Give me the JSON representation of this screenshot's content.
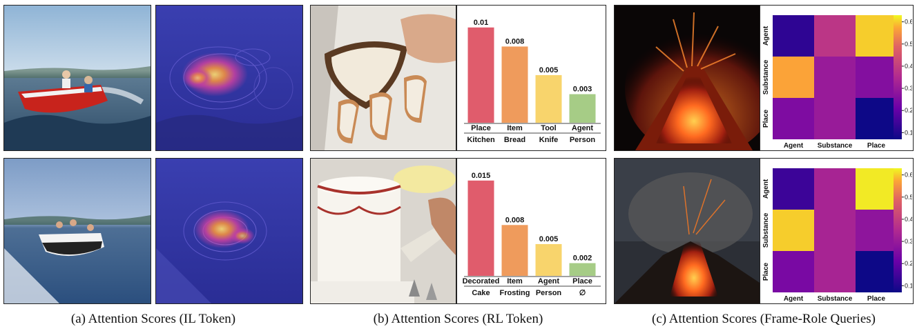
{
  "captions": {
    "a": "(a) Attention Scores (IL Token)",
    "b": "(b) Attention Scores (RL Token)",
    "c": "(c) Attention Scores (Frame-Role Queries)"
  },
  "icons": {
    "boat_photo": "speedboat-photo-icon",
    "heatmap_overlay": "attention-overlay-icon",
    "bread_photo": "bread-spreading-photo-icon",
    "cake_photo": "cake-decorating-photo-icon",
    "volcano_photo": "volcano-photo-icon"
  },
  "colors": {
    "bar_colors": [
      "#e05c6c",
      "#ef9b5c",
      "#f8d46c",
      "#a6cc86"
    ],
    "heatmap_colormap": "plasma"
  },
  "chart_data": [
    {
      "type": "bar",
      "id": "b-top",
      "roles": [
        "Place",
        "Item",
        "Tool",
        "Agent"
      ],
      "nouns": [
        "Kitchen",
        "Bread",
        "Knife",
        "Person"
      ],
      "values": [
        0.01,
        0.008,
        0.005,
        0.003
      ],
      "value_labels": [
        "0.01",
        "0.008",
        "0.005",
        "0.003"
      ],
      "ylim": [
        0,
        0.011
      ]
    },
    {
      "type": "bar",
      "id": "b-bottom",
      "roles": [
        "Decorated",
        "Item",
        "Agent",
        "Place"
      ],
      "nouns": [
        "Cake",
        "Frosting",
        "Person",
        "∅"
      ],
      "values": [
        0.015,
        0.008,
        0.005,
        0.002
      ],
      "value_labels": [
        "0.015",
        "0.008",
        "0.005",
        "0.002"
      ],
      "ylim": [
        0,
        0.0165
      ]
    },
    {
      "type": "heatmap",
      "id": "c-top",
      "rows": [
        "Agent",
        "Substance",
        "Place"
      ],
      "cols": [
        "Agent",
        "Substance",
        "Place"
      ],
      "values": [
        [
          0.12,
          0.38,
          0.6
        ],
        [
          0.57,
          0.3,
          0.26
        ],
        [
          0.25,
          0.3,
          0.07
        ]
      ],
      "colorbar_ticks": [
        "0.1",
        "0.2",
        "0.3",
        "0.4",
        "0.5",
        "0.6"
      ],
      "vlim": [
        0.07,
        0.63
      ]
    },
    {
      "type": "heatmap",
      "id": "c-bottom",
      "rows": [
        "Agent",
        "Substance",
        "Place"
      ],
      "cols": [
        "Agent",
        "Substance",
        "Place"
      ],
      "values": [
        [
          0.14,
          0.33,
          0.62
        ],
        [
          0.6,
          0.33,
          0.28
        ],
        [
          0.24,
          0.33,
          0.06
        ]
      ],
      "colorbar_ticks": [
        "0.1",
        "0.2",
        "0.3",
        "0.4",
        "0.5",
        "0.6"
      ],
      "vlim": [
        0.07,
        0.63
      ]
    }
  ]
}
